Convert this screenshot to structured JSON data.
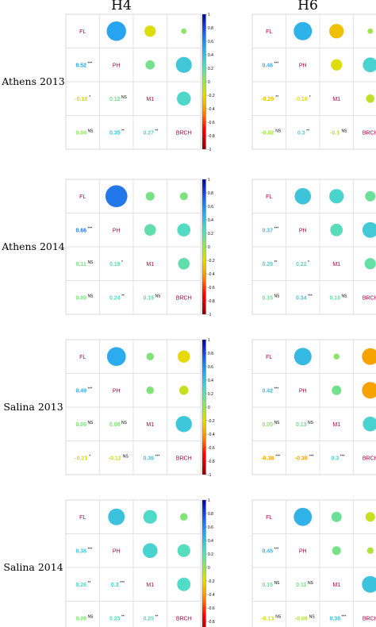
{
  "chart_data": {
    "type": "heatmap",
    "description_kind": "correlation matrix grid",
    "column_titles": [
      "H4",
      "H6"
    ],
    "row_titles": [
      "Athens 2013",
      "Athens 2014",
      "Salina 2013",
      "Salina 2014"
    ],
    "variables": [
      "FL",
      "PH",
      "M1",
      "BRCH"
    ],
    "colorbar_ticks": [
      "1",
      "0.8",
      "0.6",
      "0.4",
      "0.2",
      "0",
      "-0.2",
      "-0.4",
      "-0.6",
      "-0.8",
      "-1"
    ],
    "colorbar_range": [
      -1,
      1
    ],
    "panels": [
      {
        "row": "Athens 2013",
        "column": "H4",
        "lower": [
          {
            "r": 1,
            "c": 0,
            "text": "0.52",
            "sig": "***",
            "value": 0.52
          },
          {
            "r": 2,
            "c": 0,
            "text": "-0.18",
            "sig": "*",
            "value": -0.18
          },
          {
            "r": 2,
            "c": 1,
            "text": "0.12",
            "sig": "NS",
            "value": 0.12
          },
          {
            "r": 3,
            "c": 0,
            "text": "0.04",
            "sig": "NS",
            "value": 0.04
          },
          {
            "r": 3,
            "c": 1,
            "text": "0.35",
            "sig": "**",
            "value": 0.35
          },
          {
            "r": 3,
            "c": 2,
            "text": "0.27",
            "sig": "**",
            "value": 0.27
          }
        ]
      },
      {
        "row": "Athens 2013",
        "column": "H6",
        "lower": [
          {
            "r": 1,
            "c": 0,
            "text": "0.46",
            "sig": "***",
            "value": 0.46
          },
          {
            "r": 2,
            "c": 0,
            "text": "-0.29",
            "sig": "**",
            "value": -0.29
          },
          {
            "r": 2,
            "c": 1,
            "text": "-0.18",
            "sig": "*",
            "value": -0.18
          },
          {
            "r": 3,
            "c": 0,
            "text": "-0.02",
            "sig": "NS",
            "value": -0.02
          },
          {
            "r": 3,
            "c": 1,
            "text": "0.3",
            "sig": "**",
            "value": 0.3
          },
          {
            "r": 3,
            "c": 2,
            "text": "-0.1",
            "sig": "NS",
            "value": -0.1
          }
        ]
      },
      {
        "row": "Athens 2014",
        "column": "H4",
        "lower": [
          {
            "r": 1,
            "c": 0,
            "text": "0.66",
            "sig": "***",
            "value": 0.66
          },
          {
            "r": 2,
            "c": 0,
            "text": "0.11",
            "sig": "NS",
            "value": 0.11
          },
          {
            "r": 2,
            "c": 1,
            "text": "0.19",
            "sig": "*",
            "value": 0.19
          },
          {
            "r": 3,
            "c": 0,
            "text": "0.09",
            "sig": "NS",
            "value": 0.09
          },
          {
            "r": 3,
            "c": 1,
            "text": "0.24",
            "sig": "**",
            "value": 0.24
          },
          {
            "r": 3,
            "c": 2,
            "text": "0.19",
            "sig": "NS",
            "value": 0.19
          }
        ]
      },
      {
        "row": "Athens 2014",
        "column": "H6",
        "lower": [
          {
            "r": 1,
            "c": 0,
            "text": "0.37",
            "sig": "***",
            "value": 0.37
          },
          {
            "r": 2,
            "c": 0,
            "text": "0.29",
            "sig": "**",
            "value": 0.29
          },
          {
            "r": 2,
            "c": 1,
            "text": "0.22",
            "sig": "*",
            "value": 0.22
          },
          {
            "r": 3,
            "c": 0,
            "text": "0.15",
            "sig": "NS",
            "value": 0.15
          },
          {
            "r": 3,
            "c": 1,
            "text": "0.34",
            "sig": "***",
            "value": 0.34
          },
          {
            "r": 3,
            "c": 2,
            "text": "0.18",
            "sig": "NS",
            "value": 0.18
          }
        ]
      },
      {
        "row": "Salina 2013",
        "column": "H4",
        "lower": [
          {
            "r": 1,
            "c": 0,
            "text": "0.49",
            "sig": "***",
            "value": 0.49
          },
          {
            "r": 2,
            "c": 0,
            "text": "0.08",
            "sig": "NS",
            "value": 0.08
          },
          {
            "r": 2,
            "c": 1,
            "text": "0.08",
            "sig": "NS",
            "value": 0.08
          },
          {
            "r": 3,
            "c": 0,
            "text": "-0.21",
            "sig": "*",
            "value": -0.21
          },
          {
            "r": 3,
            "c": 1,
            "text": "-0.12",
            "sig": "NS",
            "value": -0.12
          },
          {
            "r": 3,
            "c": 2,
            "text": "0.36",
            "sig": "***",
            "value": 0.36
          }
        ]
      },
      {
        "row": "Salina 2013",
        "column": "H6",
        "lower": [
          {
            "r": 1,
            "c": 0,
            "text": "0.42",
            "sig": "***",
            "value": 0.42
          },
          {
            "r": 2,
            "c": 0,
            "text": "0.05",
            "sig": "NS",
            "value": 0.05
          },
          {
            "r": 2,
            "c": 1,
            "text": "0.13",
            "sig": "NS",
            "value": 0.13
          },
          {
            "r": 3,
            "c": 0,
            "text": "-0.38",
            "sig": "***",
            "value": -0.38
          },
          {
            "r": 3,
            "c": 1,
            "text": "-0.38",
            "sig": "***",
            "value": -0.38
          },
          {
            "r": 3,
            "c": 2,
            "text": "0.3",
            "sig": "***",
            "value": 0.3
          }
        ]
      },
      {
        "row": "Salina 2014",
        "column": "H4",
        "lower": [
          {
            "r": 1,
            "c": 0,
            "text": "0.38",
            "sig": "***",
            "value": 0.38
          },
          {
            "r": 2,
            "c": 0,
            "text": "0.26",
            "sig": "**",
            "value": 0.26
          },
          {
            "r": 2,
            "c": 1,
            "text": "0.3",
            "sig": "***",
            "value": 0.3
          },
          {
            "r": 3,
            "c": 0,
            "text": "0.08",
            "sig": "NS",
            "value": 0.08
          },
          {
            "r": 3,
            "c": 1,
            "text": "0.23",
            "sig": "**",
            "value": 0.23
          },
          {
            "r": 3,
            "c": 2,
            "text": "0.25",
            "sig": "**",
            "value": 0.25
          }
        ]
      },
      {
        "row": "Salina 2014",
        "column": "H6",
        "lower": [
          {
            "r": 1,
            "c": 0,
            "text": "0.45",
            "sig": "***",
            "value": 0.45
          },
          {
            "r": 2,
            "c": 0,
            "text": "0.15",
            "sig": "NS",
            "value": 0.15
          },
          {
            "r": 2,
            "c": 1,
            "text": "0.11",
            "sig": "NS",
            "value": 0.11
          },
          {
            "r": 3,
            "c": 0,
            "text": "-0.13",
            "sig": "NS",
            "value": -0.13
          },
          {
            "r": 3,
            "c": 1,
            "text": "-0.06",
            "sig": "NS",
            "value": -0.06
          },
          {
            "r": 3,
            "c": 2,
            "text": "0.38",
            "sig": "***",
            "value": 0.38
          }
        ]
      }
    ],
    "upper_circle_colors_note": "upper triangle circles encode the same correlations by size and color",
    "colorbar_colors": [
      "#8b0000",
      "#ff0000",
      "#ff8c00",
      "#ffd700",
      "#adff2f",
      "#40e0d0",
      "#1e90ff",
      "#0000cd"
    ]
  }
}
